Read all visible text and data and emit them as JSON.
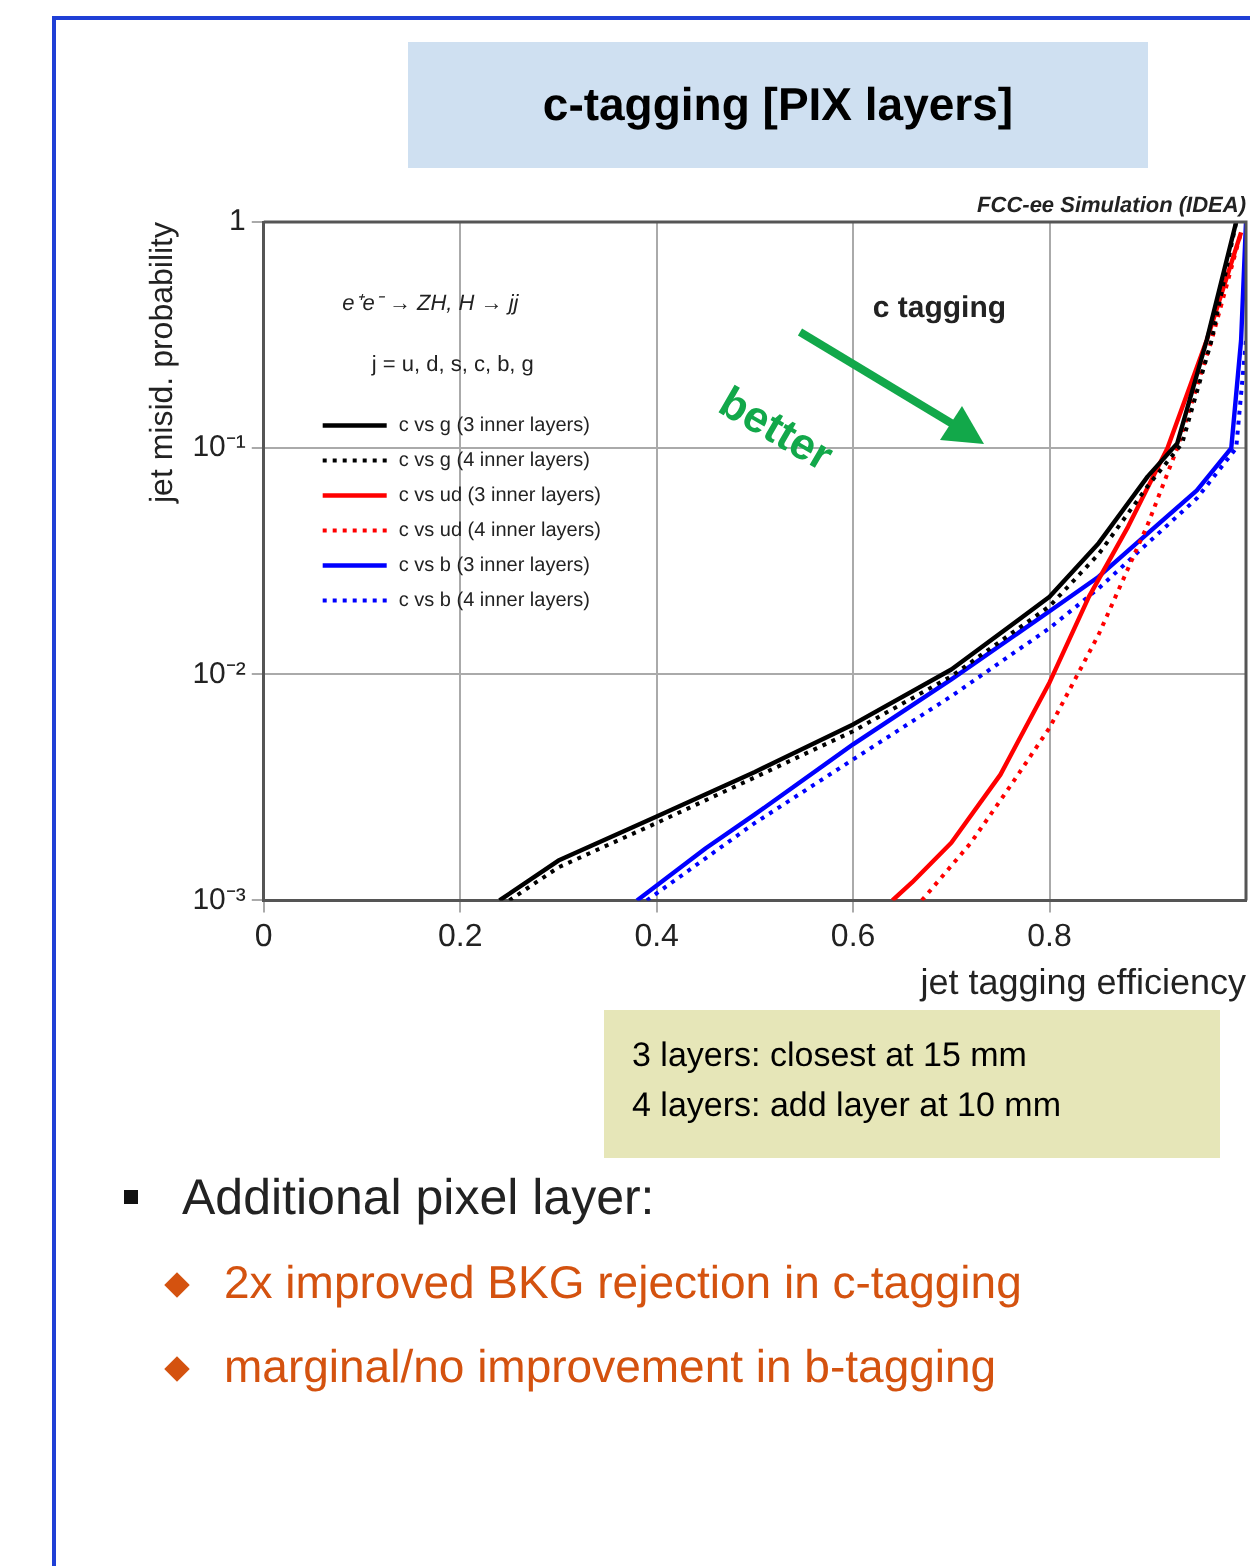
{
  "chart_data": {
    "type": "line",
    "title": "c-tagging [PIX layers]",
    "xlabel": "jet tagging efficiency",
    "ylabel": "jet misid. probability",
    "log": "y",
    "grid": true,
    "legend": "top left",
    "marker": "none",
    "xlim": [
      0,
      1
    ],
    "xticks": [
      0,
      0.2,
      0.4,
      0.6,
      0.8
    ],
    "ylim": [
      0.001,
      1
    ],
    "yticks": [
      {
        "value": 0.001,
        "label": "10⁻³"
      },
      {
        "value": 0.01,
        "label": "10⁻²"
      },
      {
        "value": 0.1,
        "label": "10⁻¹"
      },
      1
    ],
    "annotations": [
      "FCC-ee Simulation (IDEA)",
      "e⁺e⁻ → ZH, H → jj",
      "j = u, d, s, c, b, g",
      "c tagging",
      "better",
      "3 layers: closest at 15 mm",
      "4 layers: add layer at 10 mm",
      "Additional pixel layer:",
      "2x improved BKG rejection in c-tagging",
      "marginal/no improvement in b-tagging"
    ],
    "series": [
      {
        "name": "c vs g (3 inner layers)",
        "color": "#000000",
        "line_style": "solid",
        "x": [
          0.24,
          0.3,
          0.4,
          0.5,
          0.6,
          0.7,
          0.8,
          0.85,
          0.9,
          0.93,
          0.96,
          0.99
        ],
        "values": [
          0.001,
          0.0015,
          0.00235,
          0.0037,
          0.006,
          0.0105,
          0.022,
          0.038,
          0.075,
          0.105,
          0.3,
          1
        ]
      },
      {
        "name": "c vs g (4 inner layers)",
        "color": "#000000",
        "line_style": "dotted",
        "x": [
          0.25,
          0.3,
          0.4,
          0.5,
          0.6,
          0.7,
          0.8,
          0.85,
          0.9,
          0.935,
          0.965,
          0.99
        ],
        "values": [
          0.001,
          0.0014,
          0.0022,
          0.0035,
          0.0056,
          0.0098,
          0.02,
          0.034,
          0.068,
          0.105,
          0.3,
          1
        ]
      },
      {
        "name": "c vs ud (3 inner layers)",
        "color": "#ff0000",
        "line_style": "solid",
        "x": [
          0.64,
          0.66,
          0.7,
          0.75,
          0.8,
          0.84,
          0.88,
          0.92,
          0.96,
          0.995
        ],
        "values": [
          0.001,
          0.0012,
          0.0018,
          0.0036,
          0.0092,
          0.022,
          0.045,
          0.1,
          0.3,
          0.9
        ]
      },
      {
        "name": "c vs ud (4 inner layers)",
        "color": "#ff0000",
        "line_style": "dotted",
        "x": [
          0.67,
          0.72,
          0.76,
          0.8,
          0.85,
          0.9,
          0.93,
          0.965,
          0.995
        ],
        "values": [
          0.001,
          0.0018,
          0.0032,
          0.0058,
          0.015,
          0.046,
          0.1,
          0.3,
          0.9
        ]
      },
      {
        "name": "c vs b (3 inner layers)",
        "color": "#0000ff",
        "line_style": "solid",
        "x": [
          0.38,
          0.45,
          0.5,
          0.6,
          0.7,
          0.8,
          0.85,
          0.9,
          0.95,
          0.985,
          0.995,
          1.0
        ],
        "values": [
          0.001,
          0.0017,
          0.0024,
          0.0049,
          0.0095,
          0.019,
          0.027,
          0.042,
          0.065,
          0.1,
          0.3,
          1
        ]
      },
      {
        "name": "c vs b (4 inner layers)",
        "color": "#0000ff",
        "line_style": "dotted",
        "x": [
          0.39,
          0.5,
          0.6,
          0.7,
          0.8,
          0.85,
          0.9,
          0.95,
          0.99,
          1.0
        ],
        "values": [
          0.001,
          0.0022,
          0.0042,
          0.008,
          0.016,
          0.024,
          0.038,
          0.06,
          0.1,
          0.3
        ]
      }
    ]
  }
}
